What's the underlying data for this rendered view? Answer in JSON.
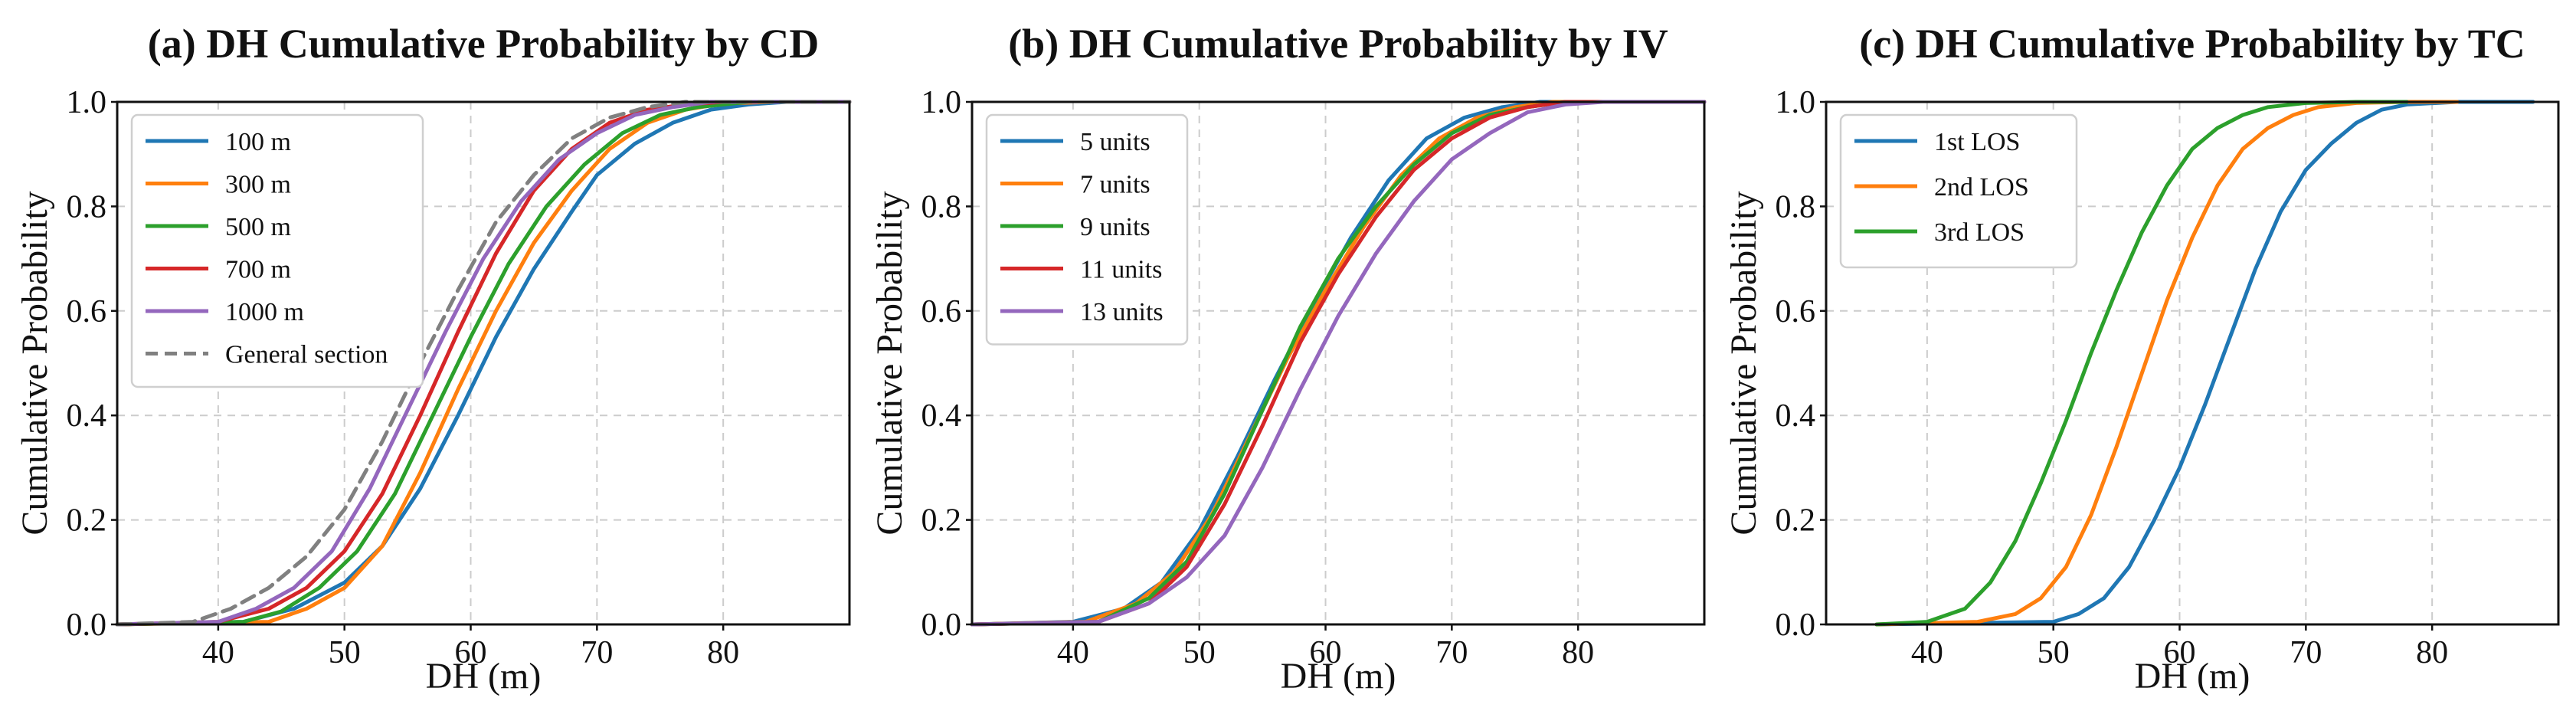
{
  "chart_data": [
    {
      "type": "line",
      "title": "(a) DH Cumulative Probability by CD",
      "xlabel": "DH (m)",
      "ylabel": "Cumulative Probability",
      "xlim": [
        32,
        90
      ],
      "ylim": [
        0,
        1
      ],
      "xticks": [
        40,
        50,
        60,
        70,
        80
      ],
      "yticks": [
        0.0,
        0.2,
        0.4,
        0.6,
        0.8,
        1.0
      ],
      "grid": true,
      "legend_position": "upper-left",
      "series": [
        {
          "name": "100 m",
          "color": "#1f77b4",
          "dash": "solid",
          "x": [
            32,
            42,
            46,
            50,
            53,
            56,
            59,
            62,
            65,
            68,
            70,
            73,
            76,
            79,
            82,
            85,
            90
          ],
          "y": [
            0.0,
            0.005,
            0.03,
            0.08,
            0.15,
            0.26,
            0.4,
            0.55,
            0.68,
            0.79,
            0.86,
            0.92,
            0.96,
            0.985,
            0.995,
            1.0,
            1.0
          ]
        },
        {
          "name": "300 m",
          "color": "#ff7f0e",
          "dash": "solid",
          "x": [
            32,
            44,
            47,
            50,
            53,
            56,
            59,
            62,
            65,
            68,
            71,
            74,
            77,
            80,
            84,
            90
          ],
          "y": [
            0.0,
            0.005,
            0.03,
            0.07,
            0.15,
            0.29,
            0.45,
            0.6,
            0.73,
            0.83,
            0.91,
            0.96,
            0.985,
            0.997,
            1.0,
            1.0
          ]
        },
        {
          "name": "500 m",
          "color": "#2ca02c",
          "dash": "solid",
          "x": [
            32,
            42,
            45,
            48,
            51,
            54,
            57,
            60,
            63,
            66,
            69,
            72,
            75,
            78,
            82,
            90
          ],
          "y": [
            0.0,
            0.005,
            0.025,
            0.07,
            0.14,
            0.25,
            0.4,
            0.55,
            0.69,
            0.8,
            0.88,
            0.94,
            0.975,
            0.99,
            1.0,
            1.0
          ]
        },
        {
          "name": "700 m",
          "color": "#d62728",
          "dash": "solid",
          "x": [
            32,
            40,
            44,
            47,
            50,
            53,
            56,
            59,
            62,
            65,
            68,
            71,
            74,
            77,
            80,
            90
          ],
          "y": [
            0.0,
            0.005,
            0.03,
            0.07,
            0.14,
            0.25,
            0.4,
            0.56,
            0.71,
            0.83,
            0.91,
            0.96,
            0.985,
            0.995,
            1.0,
            1.0
          ]
        },
        {
          "name": "1000 m",
          "color": "#9467bd",
          "dash": "solid",
          "x": [
            32,
            40,
            43,
            46,
            49,
            52,
            55,
            58,
            61,
            64,
            67,
            70,
            73,
            76,
            79,
            90
          ],
          "y": [
            0.0,
            0.005,
            0.03,
            0.07,
            0.14,
            0.26,
            0.41,
            0.56,
            0.7,
            0.81,
            0.89,
            0.94,
            0.975,
            0.99,
            1.0,
            1.0
          ]
        },
        {
          "name": "General section",
          "color": "#808080",
          "dash": "dashed",
          "x": [
            32,
            38,
            41,
            44,
            47,
            50,
            53,
            56,
            59,
            62,
            65,
            68,
            71,
            74,
            77,
            80,
            90
          ],
          "y": [
            0.0,
            0.005,
            0.03,
            0.07,
            0.13,
            0.22,
            0.35,
            0.5,
            0.64,
            0.77,
            0.86,
            0.93,
            0.97,
            0.99,
            1.0,
            1.0,
            1.0
          ]
        }
      ]
    },
    {
      "type": "line",
      "title": "(b) DH Cumulative Probability by IV",
      "xlabel": "DH (m)",
      "ylabel": "Cumulative Probability",
      "xlim": [
        32,
        90
      ],
      "ylim": [
        0,
        1
      ],
      "xticks": [
        40,
        50,
        60,
        70,
        80
      ],
      "yticks": [
        0.0,
        0.2,
        0.4,
        0.6,
        0.8,
        1.0
      ],
      "grid": true,
      "legend_position": "upper-left",
      "series": [
        {
          "name": "5 units",
          "color": "#1f77b4",
          "dash": "solid",
          "x": [
            32,
            40,
            44,
            47,
            50,
            53,
            56,
            59,
            62,
            65,
            68,
            71,
            74,
            77,
            80,
            90
          ],
          "y": [
            0.0,
            0.005,
            0.03,
            0.08,
            0.18,
            0.32,
            0.47,
            0.61,
            0.74,
            0.85,
            0.93,
            0.97,
            0.99,
            1.0,
            1.0,
            1.0
          ]
        },
        {
          "name": "7 units",
          "color": "#ff7f0e",
          "dash": "solid",
          "x": [
            32,
            41,
            45,
            48,
            51,
            54,
            57,
            60,
            63,
            66,
            69,
            72,
            75,
            78,
            81,
            90
          ],
          "y": [
            0.0,
            0.005,
            0.04,
            0.1,
            0.21,
            0.36,
            0.51,
            0.64,
            0.76,
            0.86,
            0.93,
            0.97,
            0.99,
            1.0,
            1.0,
            1.0
          ]
        },
        {
          "name": "9 units",
          "color": "#2ca02c",
          "dash": "solid",
          "x": [
            32,
            42,
            46,
            49,
            52,
            55,
            58,
            61,
            64,
            67,
            70,
            73,
            76,
            79,
            82,
            90
          ],
          "y": [
            0.0,
            0.005,
            0.05,
            0.12,
            0.25,
            0.41,
            0.57,
            0.7,
            0.8,
            0.88,
            0.94,
            0.975,
            0.99,
            1.0,
            1.0,
            1.0
          ]
        },
        {
          "name": "11 units",
          "color": "#d62728",
          "dash": "solid",
          "x": [
            32,
            42,
            46,
            49,
            52,
            55,
            58,
            61,
            64,
            67,
            70,
            73,
            76,
            79,
            82,
            90
          ],
          "y": [
            0.0,
            0.005,
            0.04,
            0.11,
            0.23,
            0.38,
            0.54,
            0.67,
            0.78,
            0.87,
            0.93,
            0.97,
            0.99,
            1.0,
            1.0,
            1.0
          ]
        },
        {
          "name": "13 units",
          "color": "#9467bd",
          "dash": "solid",
          "x": [
            32,
            42,
            46,
            49,
            52,
            55,
            58,
            61,
            64,
            67,
            70,
            73,
            76,
            79,
            82,
            90
          ],
          "y": [
            0.0,
            0.005,
            0.04,
            0.09,
            0.17,
            0.3,
            0.45,
            0.59,
            0.71,
            0.81,
            0.89,
            0.94,
            0.98,
            0.995,
            1.0,
            1.0
          ]
        }
      ]
    },
    {
      "type": "line",
      "title": "(c) DH Cumulative Probability by TC",
      "xlabel": "DH (m)",
      "ylabel": "Cumulative Probability",
      "xlim": [
        32,
        90
      ],
      "ylim": [
        0,
        1
      ],
      "xticks": [
        40,
        50,
        60,
        70,
        80
      ],
      "yticks": [
        0.0,
        0.2,
        0.4,
        0.6,
        0.8,
        1.0
      ],
      "grid": true,
      "legend_position": "upper-left",
      "series": [
        {
          "name": "1st LOS",
          "color": "#1f77b4",
          "dash": "solid",
          "x": [
            36,
            50,
            52,
            54,
            56,
            58,
            60,
            62,
            64,
            66,
            68,
            70,
            72,
            74,
            76,
            78,
            82,
            88
          ],
          "y": [
            0.0,
            0.005,
            0.02,
            0.05,
            0.11,
            0.2,
            0.3,
            0.42,
            0.55,
            0.68,
            0.79,
            0.87,
            0.92,
            0.96,
            0.985,
            0.995,
            1.0,
            1.0
          ]
        },
        {
          "name": "2nd LOS",
          "color": "#ff7f0e",
          "dash": "solid",
          "x": [
            36,
            44,
            47,
            49,
            51,
            53,
            55,
            57,
            59,
            61,
            63,
            65,
            67,
            69,
            71,
            74,
            78,
            82
          ],
          "y": [
            0.0,
            0.005,
            0.02,
            0.05,
            0.11,
            0.21,
            0.34,
            0.48,
            0.62,
            0.74,
            0.84,
            0.91,
            0.95,
            0.975,
            0.99,
            0.998,
            1.0,
            1.0
          ]
        },
        {
          "name": "3rd LOS",
          "color": "#2ca02c",
          "dash": "solid",
          "x": [
            36,
            40,
            43,
            45,
            47,
            49,
            51,
            53,
            55,
            57,
            59,
            61,
            63,
            65,
            67,
            70,
            74,
            78
          ],
          "y": [
            0.0,
            0.005,
            0.03,
            0.08,
            0.16,
            0.27,
            0.39,
            0.52,
            0.64,
            0.75,
            0.84,
            0.91,
            0.95,
            0.975,
            0.99,
            0.998,
            1.0,
            1.0
          ]
        }
      ]
    }
  ]
}
